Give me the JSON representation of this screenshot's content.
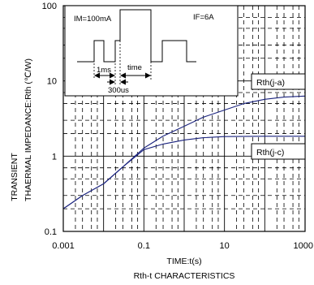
{
  "chart_data": {
    "type": "line",
    "title": "Rth-t CHARACTERISTICS",
    "xlabel": "TIME:t(s)",
    "ylabel": [
      "TRANSIENT",
      "THAERMAL IMPEDANCE:Rth (℃/W)"
    ],
    "x_scale": "log",
    "y_scale": "log",
    "xlim": [
      0.001,
      1000
    ],
    "ylim": [
      0.1,
      100
    ],
    "x_ticks": [
      {
        "value": 0.001,
        "label": "0.001"
      },
      {
        "value": 0.1,
        "label": "0.1"
      },
      {
        "value": 10,
        "label": "10"
      },
      {
        "value": 1000,
        "label": "1000"
      }
    ],
    "y_ticks": [
      {
        "value": 100,
        "label": "100"
      },
      {
        "value": 10,
        "label": "10"
      },
      {
        "value": 1,
        "label": "1"
      },
      {
        "value": 0.1,
        "label": "0.1"
      }
    ],
    "grid": true,
    "line_color": "#1a237e",
    "series": [
      {
        "name": "Rth(j-a)",
        "x": [
          0.001,
          0.003,
          0.01,
          0.03,
          0.1,
          0.3,
          1,
          3,
          10,
          30,
          100,
          300,
          1000
        ],
        "y": [
          0.2,
          0.3,
          0.43,
          0.72,
          1.28,
          1.85,
          2.5,
          3.3,
          4.1,
          5.0,
          5.7,
          6.1,
          6.3
        ]
      },
      {
        "name": "Rth(j-c)",
        "x": [
          0.001,
          0.003,
          0.01,
          0.03,
          0.1,
          0.3,
          1,
          3,
          10,
          100,
          1000
        ],
        "y": [
          0.2,
          0.3,
          0.43,
          0.72,
          1.22,
          1.45,
          1.64,
          1.76,
          1.82,
          1.84,
          1.84
        ]
      }
    ]
  },
  "inset": {
    "im_label": "IM=100mA",
    "if_label": "IF=6A",
    "pulse_label": "1ms",
    "time_label": "time",
    "period_label": "300us"
  }
}
